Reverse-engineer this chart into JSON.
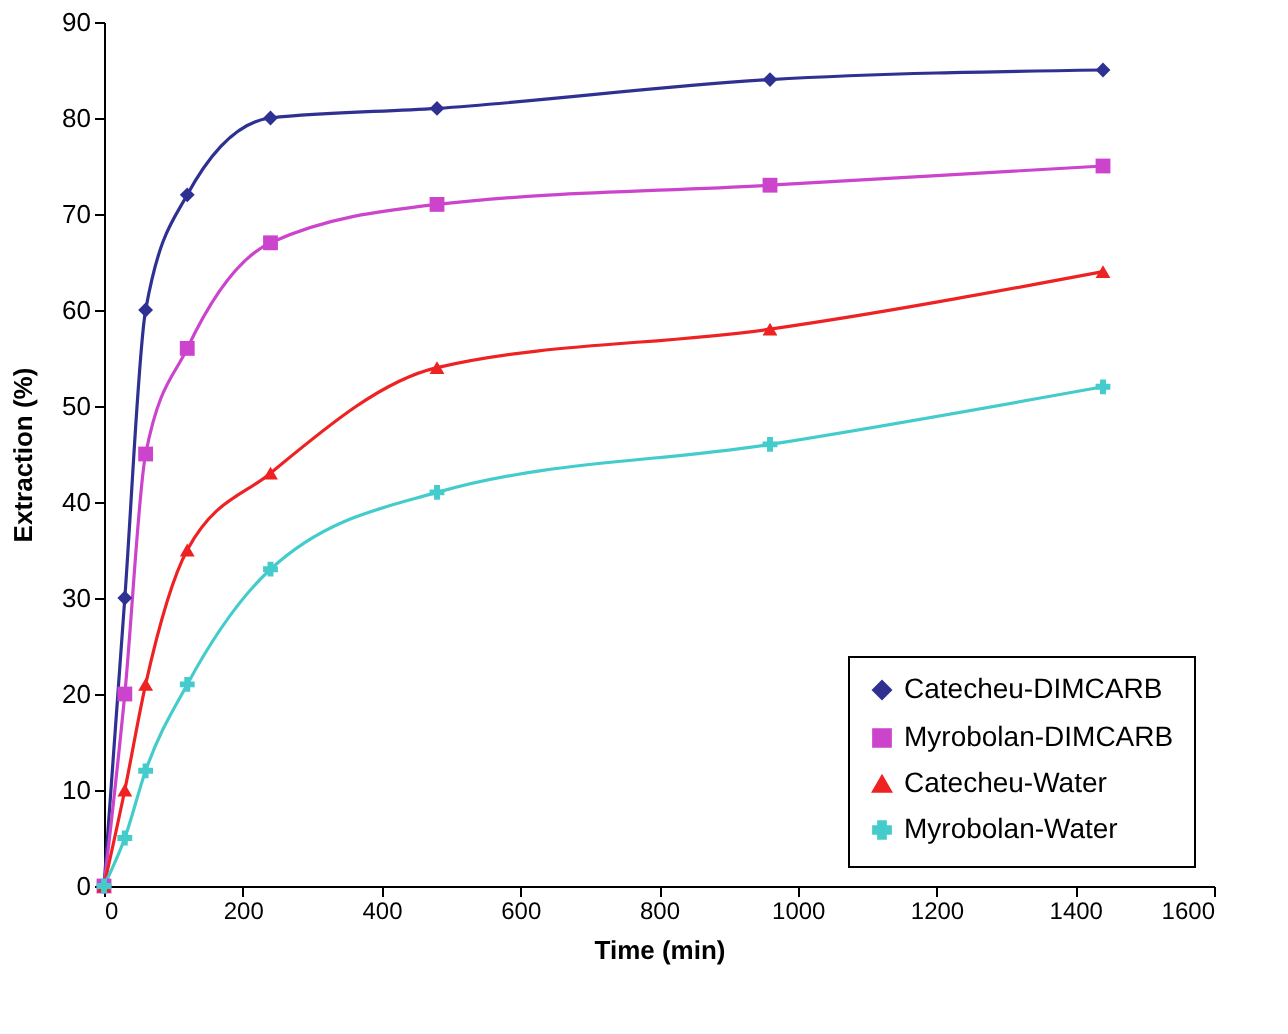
{
  "chart_data": {
    "type": "line",
    "xlabel": "Time (min)",
    "ylabel": "Extraction (%)",
    "x": [
      0,
      30,
      60,
      120,
      240,
      480,
      960,
      1440
    ],
    "xlim": [
      0,
      1600
    ],
    "xticks": [
      0,
      200,
      400,
      600,
      800,
      1000,
      1200,
      1400,
      1600
    ],
    "ylim": [
      0,
      90
    ],
    "yticks": [
      0,
      10,
      20,
      30,
      40,
      50,
      60,
      70,
      80,
      90
    ],
    "legend": "bottom right",
    "grid": false,
    "series": [
      {
        "name": "Catecheu-DIMCARB",
        "color": "#2e3192",
        "marker": "diamond",
        "values": [
          0,
          30,
          60,
          72,
          80,
          81,
          84,
          85
        ]
      },
      {
        "name": "Myrobolan-DIMCARB",
        "color": "#cc44cc",
        "marker": "square",
        "values": [
          0,
          20,
          45,
          56,
          67,
          71,
          73,
          75
        ]
      },
      {
        "name": "Catecheu-Water",
        "color": "#ee2222",
        "marker": "triangle",
        "values": [
          0,
          10,
          21,
          35,
          43,
          54,
          58,
          64
        ]
      },
      {
        "name": "Myrobolan-Water",
        "color": "#44cccc",
        "marker": "cross",
        "values": [
          0,
          5,
          12,
          21,
          33,
          41,
          46,
          52
        ]
      }
    ]
  }
}
